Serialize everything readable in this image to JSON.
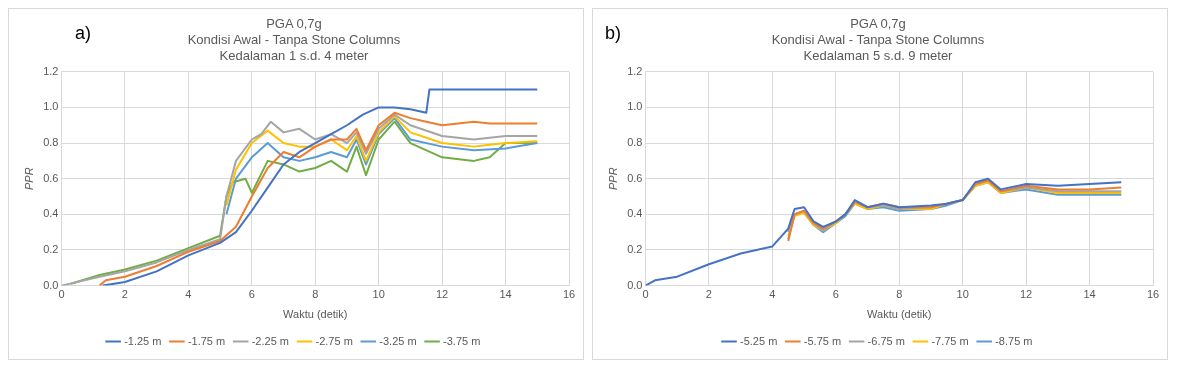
{
  "chart_data": [
    {
      "type": "line",
      "title": [
        "PGA 0,7g",
        "Kondisi Awal - Tanpa Stone Columns",
        "Kedalaman 1 s.d. 4 meter"
      ],
      "annotations": [
        "a)"
      ],
      "xlabel": "Waktu (detik)",
      "ylabel": "PPR",
      "xlim": [
        0,
        16
      ],
      "xticks": [
        0,
        2,
        4,
        6,
        8,
        10,
        12,
        14,
        16
      ],
      "ylim": [
        0,
        1.2
      ],
      "yticks": [
        {
          "value": 0,
          "label": "0.0"
        },
        {
          "value": 0.2,
          "label": "0.2"
        },
        {
          "value": 0.4,
          "label": "0.4"
        },
        {
          "value": 0.6,
          "label": "0.6"
        },
        {
          "value": 0.8,
          "label": "0.8"
        },
        {
          "value": 1,
          "label": "1.0"
        },
        {
          "value": 1.2,
          "label": "1.2"
        }
      ],
      "grid": true,
      "legend": "bottom",
      "marker": "none",
      "line_style": "solid",
      "series": [
        {
          "name": "-1.25 m",
          "color": "#4472c4",
          "x": [
            1.3,
            2,
            3,
            4,
            5,
            5.5,
            6,
            6.5,
            7,
            7.5,
            8,
            8.5,
            9,
            9.5,
            10,
            10.5,
            11,
            11.5,
            11.6,
            12,
            13,
            15
          ],
          "values": [
            0,
            0.02,
            0.08,
            0.17,
            0.24,
            0.3,
            0.42,
            0.55,
            0.68,
            0.75,
            0.8,
            0.85,
            0.9,
            0.96,
            1,
            1,
            0.99,
            0.97,
            1.1,
            1.1,
            1.1,
            1.1
          ]
        },
        {
          "name": "-1.75 m",
          "color": "#ed7d31",
          "x": [
            1.2,
            1.4,
            2,
            3,
            4,
            5,
            5.5,
            6,
            6.5,
            7,
            7.5,
            8,
            8.5,
            9,
            9.3,
            9.6,
            10,
            10.5,
            11,
            11.5,
            12,
            13,
            13.5,
            15
          ],
          "values": [
            0,
            0.03,
            0.05,
            0.11,
            0.19,
            0.25,
            0.33,
            0.5,
            0.66,
            0.75,
            0.72,
            0.78,
            0.82,
            0.82,
            0.88,
            0.76,
            0.9,
            0.97,
            0.94,
            0.92,
            0.9,
            0.92,
            0.91,
            0.91
          ]
        },
        {
          "name": "-2.25 m",
          "color": "#a5a5a5",
          "x": [
            0,
            1.2,
            2,
            3,
            4,
            5,
            5.2,
            5.5,
            6,
            6.3,
            6.6,
            7,
            7.5,
            8,
            8.5,
            9,
            9.3,
            9.6,
            10,
            10.5,
            11,
            12,
            13,
            14,
            15
          ],
          "values": [
            0,
            0.05,
            0.08,
            0.13,
            0.2,
            0.26,
            0.5,
            0.7,
            0.82,
            0.85,
            0.92,
            0.86,
            0.88,
            0.82,
            0.85,
            0.8,
            0.86,
            0.74,
            0.88,
            0.96,
            0.9,
            0.84,
            0.82,
            0.84,
            0.84
          ]
        },
        {
          "name": "-2.75 m",
          "color": "#ffc000",
          "x": [
            5.2,
            5.5,
            6,
            6.5,
            7,
            7.5,
            8,
            8.5,
            9,
            9.3,
            9.6,
            10,
            10.5,
            11,
            12,
            13,
            13.5,
            14,
            15
          ],
          "values": [
            0.45,
            0.65,
            0.8,
            0.87,
            0.8,
            0.78,
            0.78,
            0.82,
            0.76,
            0.84,
            0.7,
            0.86,
            0.95,
            0.86,
            0.8,
            0.78,
            0.79,
            0.8,
            0.81
          ]
        },
        {
          "name": "-3.25 m",
          "color": "#5b9bd5",
          "x": [
            5.2,
            5.5,
            6,
            6.5,
            7,
            7.5,
            8,
            8.5,
            9,
            9.3,
            9.6,
            10,
            10.5,
            11,
            12,
            13,
            14,
            15
          ],
          "values": [
            0.4,
            0.6,
            0.72,
            0.8,
            0.72,
            0.7,
            0.72,
            0.75,
            0.72,
            0.82,
            0.68,
            0.85,
            0.94,
            0.82,
            0.78,
            0.76,
            0.77,
            0.8
          ]
        },
        {
          "name": "-3.75 m",
          "color": "#70ad47",
          "x": [
            0.3,
            1.2,
            2,
            3,
            4,
            5,
            5.2,
            5.4,
            5.8,
            6,
            6.5,
            7,
            7.5,
            8,
            8.5,
            9,
            9.3,
            9.6,
            10,
            10.5,
            11,
            12,
            13,
            13.5,
            14,
            15
          ],
          "values": [
            0.01,
            0.06,
            0.09,
            0.14,
            0.21,
            0.28,
            0.5,
            0.58,
            0.6,
            0.52,
            0.7,
            0.68,
            0.64,
            0.66,
            0.7,
            0.64,
            0.78,
            0.62,
            0.82,
            0.92,
            0.8,
            0.72,
            0.7,
            0.72,
            0.8,
            0.8
          ]
        }
      ]
    },
    {
      "type": "line",
      "title": [
        "PGA 0,7g",
        "Kondisi Awal - Tanpa Stone Columns",
        "Kedalaman 5 s.d. 9 meter"
      ],
      "annotations": [
        "b)"
      ],
      "xlabel": "Waktu (detik)",
      "ylabel": "PPR",
      "xlim": [
        0,
        16
      ],
      "xticks": [
        0,
        2,
        4,
        6,
        8,
        10,
        12,
        14,
        16
      ],
      "ylim": [
        0,
        1.2
      ],
      "yticks": [
        {
          "value": 0,
          "label": "0.0"
        },
        {
          "value": 0.2,
          "label": "0.2"
        },
        {
          "value": 0.4,
          "label": "0.4"
        },
        {
          "value": 0.6,
          "label": "0.6"
        },
        {
          "value": 0.8,
          "label": "0.8"
        },
        {
          "value": 1,
          "label": "1.0"
        },
        {
          "value": 1.2,
          "label": "1.2"
        }
      ],
      "grid": true,
      "legend": "bottom",
      "marker": "none",
      "line_style": "solid",
      "series": [
        {
          "name": "-5.25 m",
          "color": "#4472c4",
          "x": [
            0,
            0.3,
            1,
            2,
            3,
            3.5,
            4,
            4.5,
            4.7,
            5,
            5.3,
            5.6,
            6,
            6.3,
            6.6,
            7,
            7.5,
            8,
            9,
            9.5,
            10,
            10.4,
            10.8,
            11.2,
            12,
            13,
            14,
            15
          ],
          "values": [
            0,
            0.03,
            0.05,
            0.12,
            0.18,
            0.2,
            0.22,
            0.32,
            0.43,
            0.44,
            0.36,
            0.33,
            0.36,
            0.4,
            0.48,
            0.44,
            0.46,
            0.44,
            0.45,
            0.46,
            0.48,
            0.58,
            0.6,
            0.54,
            0.57,
            0.56,
            0.57,
            0.58
          ]
        },
        {
          "name": "-5.75 m",
          "color": "#ed7d31",
          "x": [
            4.5,
            4.7,
            5,
            5.3,
            5.6,
            6,
            6.3,
            6.6,
            7,
            7.5,
            8,
            9,
            9.5,
            10,
            10.4,
            10.8,
            11.2,
            12,
            13,
            14,
            15
          ],
          "values": [
            0.25,
            0.4,
            0.42,
            0.35,
            0.32,
            0.36,
            0.4,
            0.47,
            0.44,
            0.46,
            0.44,
            0.44,
            0.46,
            0.48,
            0.57,
            0.59,
            0.53,
            0.56,
            0.54,
            0.54,
            0.55
          ]
        },
        {
          "name": "-6.75 m",
          "color": "#a5a5a5",
          "x": [
            4.5,
            4.7,
            5,
            5.3,
            5.6,
            6,
            6.3,
            6.6,
            7,
            7.5,
            8,
            9,
            9.5,
            10,
            10.4,
            10.8,
            11.2,
            12,
            13,
            14,
            15
          ],
          "values": [
            0.26,
            0.4,
            0.42,
            0.35,
            0.31,
            0.36,
            0.4,
            0.47,
            0.44,
            0.45,
            0.43,
            0.44,
            0.46,
            0.48,
            0.57,
            0.59,
            0.53,
            0.55,
            0.53,
            0.53,
            0.53
          ]
        },
        {
          "name": "-7.75 m",
          "color": "#ffc000",
          "x": [
            4.5,
            4.7,
            5,
            5.3,
            5.6,
            6,
            6.3,
            6.6,
            7,
            7.5,
            8,
            9,
            9.5,
            10,
            10.4,
            10.8,
            11.2,
            12,
            13,
            14,
            15
          ],
          "values": [
            0.28,
            0.39,
            0.41,
            0.34,
            0.31,
            0.35,
            0.4,
            0.46,
            0.43,
            0.45,
            0.43,
            0.43,
            0.46,
            0.48,
            0.56,
            0.58,
            0.52,
            0.55,
            0.52,
            0.52,
            0.52
          ]
        },
        {
          "name": "-8.75 m",
          "color": "#5b9bd5",
          "x": [
            4.5,
            4.7,
            5,
            5.3,
            5.6,
            6,
            6.3,
            6.6,
            7,
            7.5,
            8,
            9,
            9.5,
            10,
            10.4,
            10.8,
            11.2,
            12,
            13,
            14,
            15
          ],
          "values": [
            0.3,
            0.4,
            0.41,
            0.34,
            0.3,
            0.35,
            0.39,
            0.46,
            0.43,
            0.44,
            0.42,
            0.43,
            0.45,
            0.48,
            0.56,
            0.58,
            0.52,
            0.54,
            0.51,
            0.51,
            0.51
          ]
        }
      ]
    }
  ]
}
